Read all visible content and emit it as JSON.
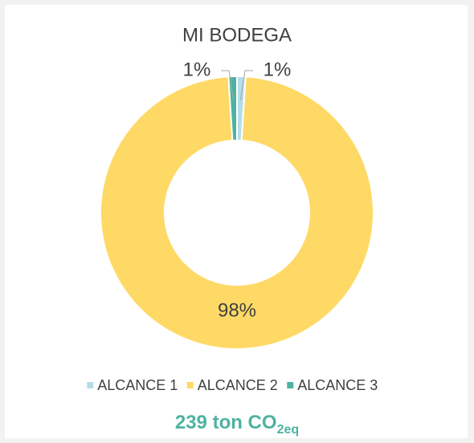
{
  "chart_data": {
    "type": "doughnut",
    "title": "MI BODEGA",
    "categories": [
      "ALCANCE 1",
      "ALCANCE 2",
      "ALCANCE 3"
    ],
    "values": [
      1,
      98,
      1
    ],
    "value_labels": [
      "1%",
      "98%",
      "1%"
    ],
    "colors": [
      "#b4dde8",
      "#ffd966",
      "#4db3a0"
    ],
    "legend": "bottom",
    "footer": {
      "text": "239 ton CO",
      "subscript": "2eq"
    }
  }
}
